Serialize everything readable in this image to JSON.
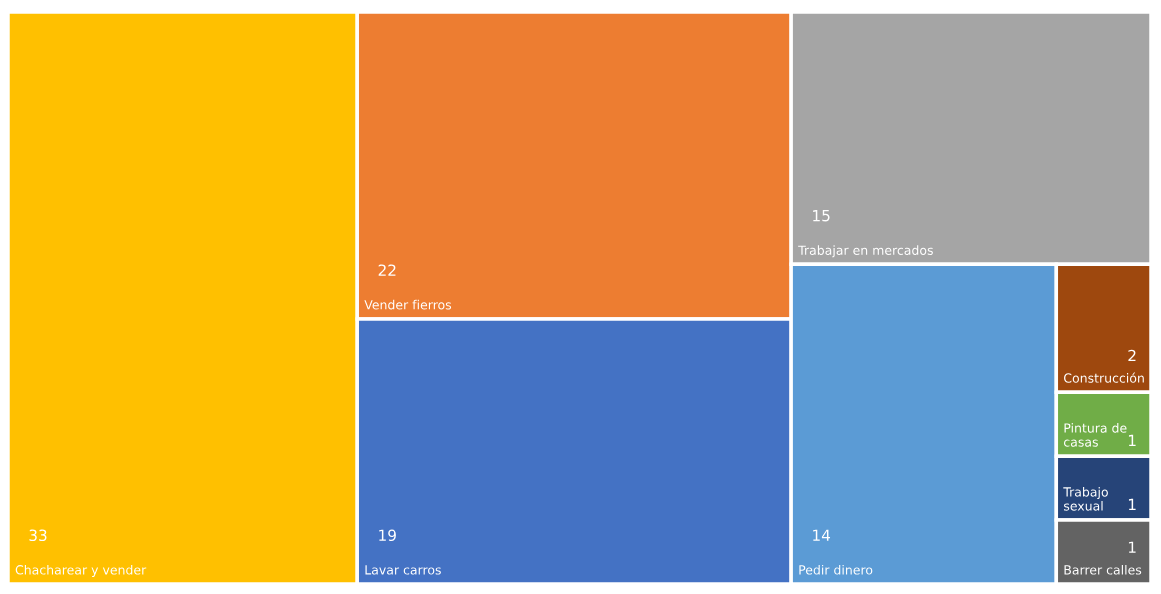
{
  "chart_data": {
    "type": "other",
    "categories": [
      "Chacharear y vender",
      "Vender fierros",
      "Lavar carros",
      "Trabajar en mercados",
      "Pedir dinero",
      "Construcción",
      "Pintura de\ncasas",
      "Trabajo\nsexual",
      "Barrer calles"
    ],
    "values": [
      33,
      22,
      19,
      15,
      14,
      2,
      1,
      1,
      1
    ],
    "colors": [
      "#ffc000",
      "#ed7d31",
      "#4472c4",
      "#a5a5a5",
      "#5b9bd5",
      "#9e480e",
      "#70ad47",
      "#264478",
      "#636363"
    ],
    "data_labels": true
  }
}
